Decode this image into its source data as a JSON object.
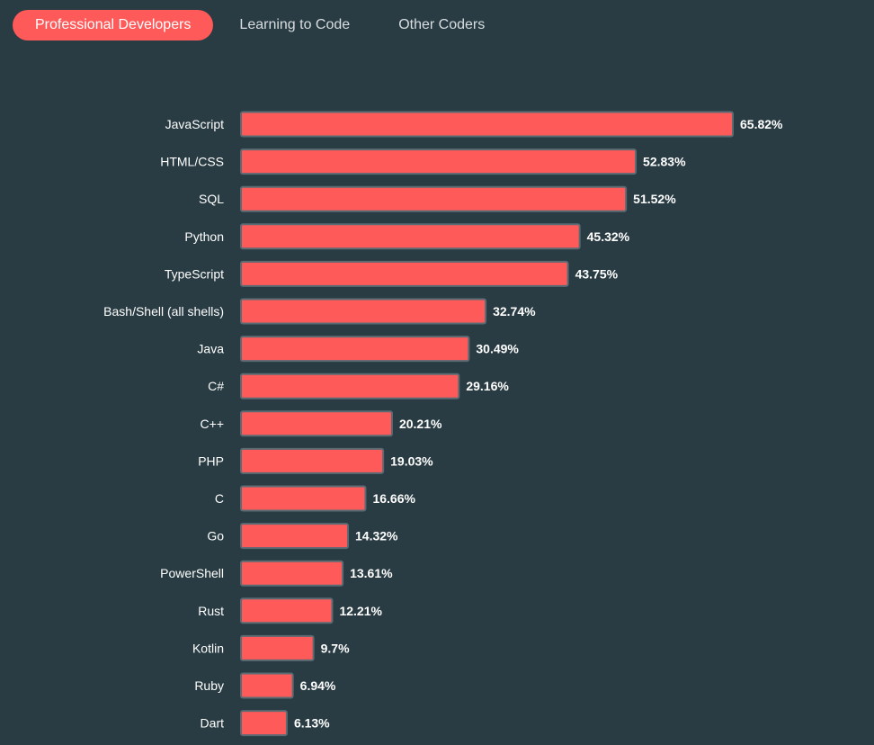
{
  "tabs": [
    {
      "label": "Professional Developers",
      "active": true
    },
    {
      "label": "Learning to Code",
      "active": false
    },
    {
      "label": "Other Coders",
      "active": false
    }
  ],
  "colors": {
    "background": "#293c43",
    "bar_fill": "#fe5a59",
    "bar_stroke": "#5b6b74",
    "active_tab": "#fe5a59"
  },
  "chart_data": {
    "type": "bar",
    "orientation": "horizontal",
    "categories": [
      "JavaScript",
      "HTML/CSS",
      "SQL",
      "Python",
      "TypeScript",
      "Bash/Shell (all shells)",
      "Java",
      "C#",
      "C++",
      "PHP",
      "C",
      "Go",
      "PowerShell",
      "Rust",
      "Kotlin",
      "Ruby",
      "Dart"
    ],
    "values": [
      65.82,
      52.83,
      51.52,
      45.32,
      43.75,
      32.74,
      30.49,
      29.16,
      20.21,
      19.03,
      16.66,
      14.32,
      13.61,
      12.21,
      9.7,
      6.94,
      6.13
    ],
    "value_labels": [
      "65.82%",
      "52.83%",
      "51.52%",
      "45.32%",
      "43.75%",
      "32.74%",
      "30.49%",
      "29.16%",
      "20.21%",
      "19.03%",
      "16.66%",
      "14.32%",
      "13.61%",
      "12.21%",
      "9.7%",
      "6.94%",
      "6.13%"
    ],
    "unit": "%",
    "grid": false,
    "legend": "none"
  }
}
